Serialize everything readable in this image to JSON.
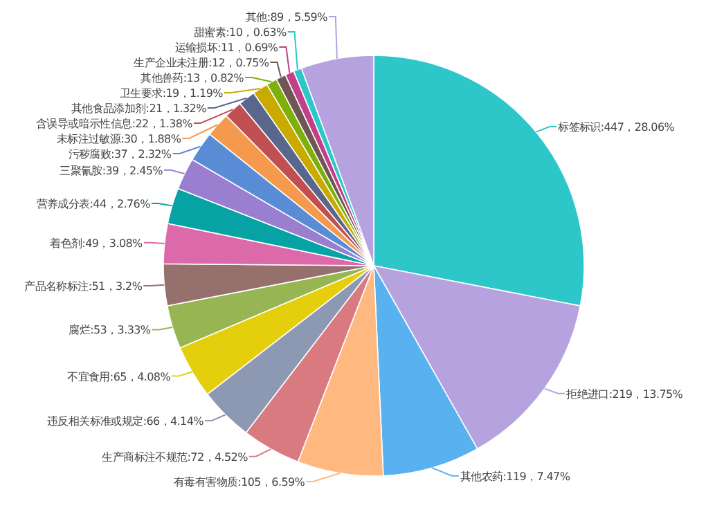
{
  "chart_data": {
    "type": "pie",
    "categories": [
      "标签标识",
      "拒绝进口",
      "其他农药",
      "有毒有害物质",
      "生产商标注不规范",
      "违反相关标准或规定",
      "不宜食用",
      "腐烂",
      "产品名称标注",
      "着色剂",
      "营养成分表",
      "三聚氰胺",
      "污秽腐败",
      "未标注过敏源",
      "含误导或暗示性信息",
      "其他食品添加剂",
      "卫生要求",
      "其他兽药",
      "生产企业未注册",
      "运输损坏",
      "甜蜜素",
      "其他"
    ],
    "values": [
      447,
      219,
      119,
      105,
      72,
      66,
      65,
      53,
      51,
      49,
      44,
      39,
      37,
      30,
      22,
      21,
      19,
      13,
      12,
      11,
      10,
      89
    ],
    "value_labels": [
      ":447，28.06%",
      ":219，13.75%",
      ":119，7.47%",
      ":105，6.59%",
      ":72，4.52%",
      ":66，4.14%",
      ":65，4.08%",
      ":53，3.33%",
      ":51，3.2%",
      ":49，3.08%",
      ":44，2.76%",
      ":39，2.45%",
      ":37，2.32%",
      ":30，1.88%",
      ":22，1.38%",
      ":21，1.32%",
      ":19，1.19%",
      ":13，0.82%",
      ":12，0.75%",
      ":11，0.69%",
      ":10，0.63%",
      ":89，5.59%"
    ],
    "colors": [
      "#2ec7c9",
      "#b6a2de",
      "#5ab1ef",
      "#ffb980",
      "#d87a80",
      "#8d98b3",
      "#e5cf0d",
      "#97b552",
      "#95706d",
      "#dc69aa",
      "#07a2a4",
      "#9a7fd1",
      "#588dd5",
      "#f5994e",
      "#c05050",
      "#59678c",
      "#c9ab00",
      "#7eb00a",
      "#6f5553",
      "#c14089",
      "#2ec7c9",
      "#b6a2de"
    ]
  }
}
